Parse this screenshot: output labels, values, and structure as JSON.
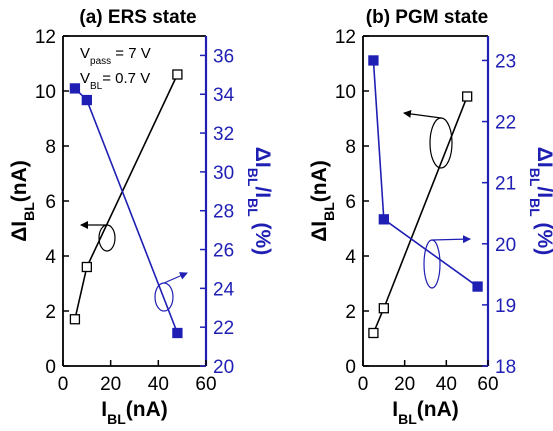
{
  "colors": {
    "left_axis": "#000000",
    "right_axis": "#1f1fb4",
    "open_series": "#000000",
    "filled_series": "#1f1fb4"
  },
  "chart_data": [
    {
      "type": "line",
      "title": "(a) ERS state",
      "xlabel": {
        "main": "I",
        "sub": "BL",
        "tail": "(nA)"
      },
      "ylabel_left": {
        "main": "ΔI",
        "sub": "BL",
        "tail": "(nA)"
      },
      "ylabel_right": {
        "main": "ΔI",
        "sub1": "BL",
        "mid": "/I",
        "sub2": "BL",
        "tail": " (%)"
      },
      "xlim": [
        0,
        60
      ],
      "xticks": [
        0,
        20,
        40,
        60
      ],
      "ylim_left": [
        0,
        12
      ],
      "yticks_left": [
        0,
        2,
        4,
        6,
        8,
        10,
        12
      ],
      "ylim_right": [
        20,
        37
      ],
      "yticks_right": [
        20,
        22,
        24,
        26,
        28,
        30,
        32,
        34,
        36
      ],
      "annotations": [
        {
          "main": "V",
          "sub": "pass",
          "tail": " = 7 V"
        },
        {
          "main": "V",
          "sub": "BL",
          "tail": "= 0.7 V"
        }
      ],
      "series": [
        {
          "axis": "left",
          "marker": "open-square",
          "x": [
            5,
            10,
            48
          ],
          "y": [
            1.7,
            3.6,
            10.6
          ]
        },
        {
          "axis": "right",
          "marker": "filled-square",
          "x": [
            5,
            10,
            48
          ],
          "y": [
            34.3,
            33.7,
            21.7
          ]
        }
      ],
      "grid": false
    },
    {
      "type": "line",
      "title": "(b) PGM state",
      "xlabel": {
        "main": "I",
        "sub": "BL",
        "tail": "(nA)"
      },
      "ylabel_left": {
        "main": "ΔI",
        "sub": "BL",
        "tail": "(nA)"
      },
      "ylabel_right": {
        "main": "ΔI",
        "sub1": "BL",
        "mid": "/I",
        "sub2": "BL",
        "tail": " (%)"
      },
      "xlim": [
        0,
        60
      ],
      "xticks": [
        0,
        20,
        40,
        60
      ],
      "ylim_left": [
        0,
        12
      ],
      "yticks_left": [
        0,
        2,
        4,
        6,
        8,
        10,
        12
      ],
      "ylim_right": [
        18,
        23.4
      ],
      "yticks_right": [
        18,
        19,
        20,
        21,
        22,
        23
      ],
      "annotations": [],
      "series": [
        {
          "axis": "left",
          "marker": "open-square",
          "x": [
            5,
            10,
            50
          ],
          "y": [
            1.2,
            2.1,
            9.8
          ]
        },
        {
          "axis": "right",
          "marker": "filled-square",
          "x": [
            5,
            10,
            55
          ],
          "y": [
            23.0,
            20.4,
            19.3
          ]
        }
      ],
      "grid": false
    }
  ]
}
